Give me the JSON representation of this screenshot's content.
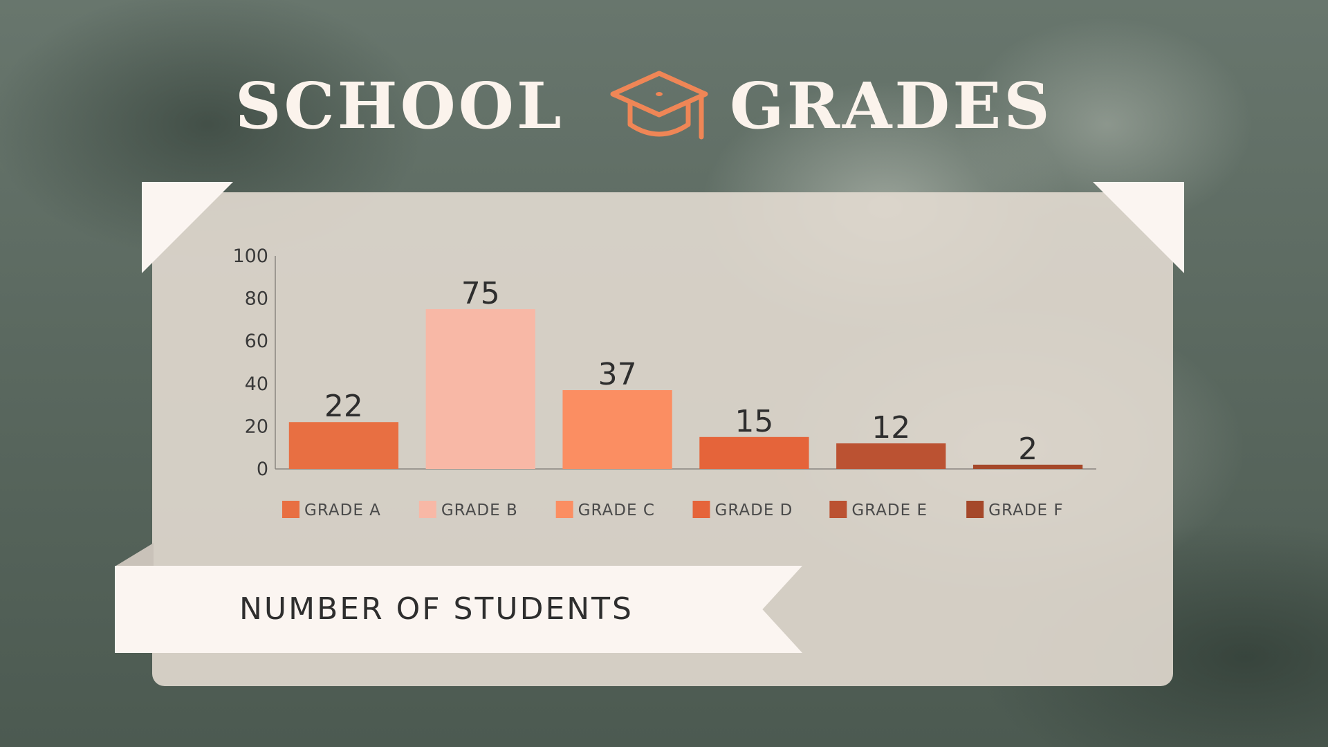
{
  "title": {
    "word_1": "SCHOOL",
    "word_2": "GRADES",
    "icon": "graduation-cap-icon",
    "icon_color": "#ef8656"
  },
  "caption": "NUMBER OF STUDENTS",
  "chart_data": {
    "type": "bar",
    "categories": [
      "GRADE A",
      "GRADE B",
      "GRADE C",
      "GRADE D",
      "GRADE E",
      "GRADE F"
    ],
    "values": [
      22,
      75,
      37,
      15,
      12,
      2
    ],
    "colors": [
      "#e86f42",
      "#f8b8a6",
      "#fb8e62",
      "#e5643a",
      "#bb5232",
      "#a5482a"
    ],
    "ylim": [
      0,
      100
    ],
    "yticks": [
      0,
      20,
      40,
      60,
      80,
      100
    ],
    "grid": false,
    "data_labels": true,
    "legend_position": "bottom"
  }
}
